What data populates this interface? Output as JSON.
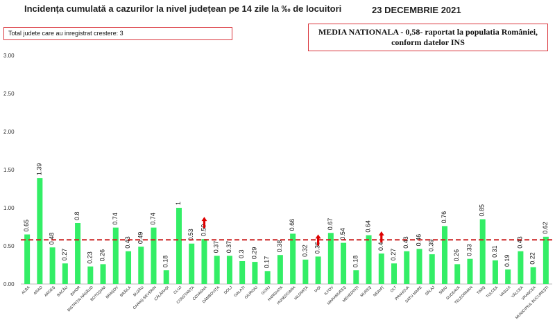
{
  "title": "Incidența cumulată a cazurilor la nivel județean pe 14 zile la ‰ de locuitori",
  "date": "23 DECEMBRIE 2021",
  "info_box": "Total judete care au inregistrat crestere: 3",
  "media_box": {
    "line1": "MEDIA NATIONALA - 0,58-  raportat la populatia României,",
    "line2": "conform datelor INS"
  },
  "colors": {
    "bar": "#33ee66",
    "reference_line": "#cc2222",
    "arrow": "#dd0000",
    "box_border": "#d9333a"
  },
  "chart_data": {
    "type": "bar",
    "title": "Incidența cumulată a cazurilor la nivel județean pe 14 zile la ‰ de locuitori",
    "xlabel": "",
    "ylabel": "",
    "ylim": [
      0,
      3.0
    ],
    "yticks": [
      "0.00",
      "0.50",
      "1.00",
      "1.50",
      "2.00",
      "2.50",
      "3.00"
    ],
    "grid": false,
    "categories": [
      "ALBA",
      "ARAD",
      "ARGEȘ",
      "BACĂU",
      "BIHOR",
      "BISTRIȚA-NĂSĂUD",
      "BOTOȘANI",
      "BRAȘOV",
      "BRĂILA",
      "BUZĂU",
      "CARAȘ-SEVERIN",
      "CĂLĂRAȘI",
      "CLUJ",
      "CONSTANȚA",
      "COVASNA",
      "DÂMBOVIȚA",
      "DOLJ",
      "GALAȚI",
      "GIURGIU",
      "GORJ",
      "HARGHITA",
      "HUNEDOARA",
      "IALOMIȚA",
      "IAȘI",
      "ILFOV",
      "MARAMUREȘ",
      "MEHEDINȚI",
      "MUREȘ",
      "NEAMȚ",
      "OLT",
      "PRAHOVA",
      "SATU MARE",
      "SĂLAJ",
      "SIBIU",
      "SUCEAVA",
      "TELEORMAN",
      "TIMIȘ",
      "TULCEA",
      "VASLUI",
      "VÂLCEA",
      "VRANCEA",
      "MUNICIPIUL BUCUREȘTI"
    ],
    "values": [
      0.65,
      1.39,
      0.48,
      0.27,
      0.8,
      0.23,
      0.26,
      0.74,
      0.43,
      0.49,
      0.74,
      0.18,
      1,
      0.53,
      0.59,
      0.37,
      0.37,
      0.3,
      0.29,
      0.17,
      0.38,
      0.66,
      0.32,
      0.36,
      0.67,
      0.54,
      0.18,
      0.64,
      0.4,
      0.27,
      0.43,
      0.46,
      0.39,
      0.76,
      0.26,
      0.33,
      0.85,
      0.31,
      0.19,
      0.43,
      0.22,
      0.62
    ],
    "value_labels": [
      "0.65",
      "1.39",
      "0.48",
      "0.27",
      "0.8",
      "0.23",
      "0.26",
      "0.74",
      "0.43",
      "0.49",
      "0.74",
      "0.18",
      "1",
      "0.53",
      "0.59",
      "0.37",
      "0.37",
      "0.3",
      "0.29",
      "0.17",
      "0.38",
      "0.66",
      "0.32",
      "0.36",
      "0.67",
      "0.54",
      "0.18",
      "0.64",
      "0.4",
      "0.27",
      "0.43",
      "0.46",
      "0.39",
      "0.76",
      "0.26",
      "0.33",
      "0.85",
      "0.31",
      "0.19",
      "0.43",
      "0.22",
      "0.62"
    ],
    "reference_line": {
      "value": 0.58,
      "style": "dashed"
    },
    "increase_markers": [
      "COVASNA",
      "IAȘI",
      "NEAMȚ"
    ]
  }
}
